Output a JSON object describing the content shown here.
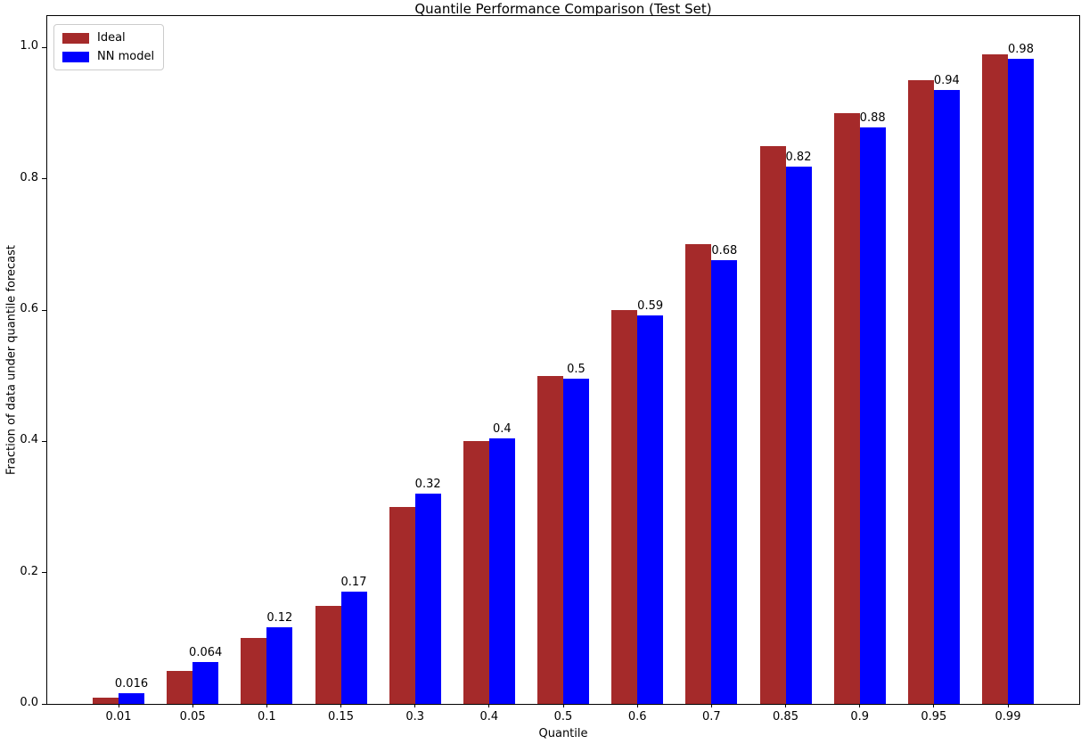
{
  "chart_data": {
    "type": "bar",
    "title": "Quantile Performance Comparison (Test Set)",
    "xlabel": "Quantile",
    "ylabel": "Fraction of data under quantile forecast",
    "categories": [
      "0.01",
      "0.05",
      "0.1",
      "0.15",
      "0.3",
      "0.4",
      "0.5",
      "0.6",
      "0.7",
      "0.85",
      "0.9",
      "0.95",
      "0.99"
    ],
    "series": [
      {
        "name": "Ideal",
        "color": "#a52a2a",
        "values": [
          0.01,
          0.05,
          0.1,
          0.15,
          0.3,
          0.4,
          0.5,
          0.6,
          0.7,
          0.85,
          0.9,
          0.95,
          0.99
        ]
      },
      {
        "name": "NN model",
        "color": "#0000ff",
        "values": [
          0.016,
          0.064,
          0.117,
          0.171,
          0.32,
          0.404,
          0.496,
          0.592,
          0.676,
          0.818,
          0.879,
          0.935,
          0.983
        ],
        "value_labels": [
          "0.016",
          "0.064",
          "0.12",
          "0.17",
          "0.32",
          "0.4",
          "0.5",
          "0.59",
          "0.68",
          "0.82",
          "0.88",
          "0.94",
          "0.98"
        ]
      }
    ],
    "yticks": [
      "0.0",
      "0.2",
      "0.4",
      "0.6",
      "0.8",
      "1.0"
    ],
    "ylim": [
      0,
      1.048
    ],
    "grid": false,
    "legend_position": "upper left"
  }
}
